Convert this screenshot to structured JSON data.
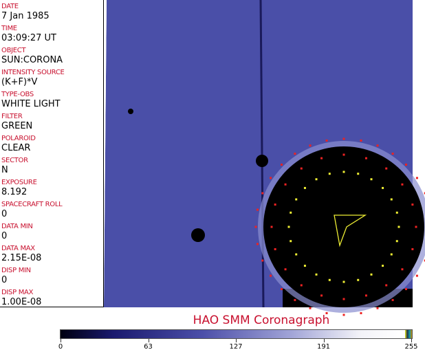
{
  "fields": [
    {
      "label": "DATE",
      "value": "7 Jan 1985"
    },
    {
      "label": "TIME",
      "value": "03:09:27 UT"
    },
    {
      "label": "OBJECT",
      "value": "SUN:CORONA"
    },
    {
      "label": "INTENSITY SOURCE",
      "value": "(K+F)*V"
    },
    {
      "label": "TYPE-OBS",
      "value": "WHITE LIGHT"
    },
    {
      "label": "FILTER",
      "value": "GREEN"
    },
    {
      "label": "POLAROID",
      "value": "CLEAR"
    },
    {
      "label": "SECTOR",
      "value": "N"
    },
    {
      "label": "EXPOSURE",
      "value": "8.192"
    },
    {
      "label": "SPACECRAFT ROLL",
      "value": "0"
    },
    {
      "label": "DATA MIN",
      "value": "0"
    },
    {
      "label": "DATA MAX",
      "value": "2.15E-08"
    },
    {
      "label": "DISP MIN",
      "value": "0"
    },
    {
      "label": "DISP MAX",
      "value": "1.00E-08"
    }
  ],
  "title": "HAO   SMM Coronagraph",
  "colorbar": {
    "ticks": [
      "0",
      "63",
      "127",
      "191",
      "255"
    ],
    "colors": {
      "low": "#000010",
      "mid": "#4b4ea8",
      "high": "#ffffff"
    }
  }
}
